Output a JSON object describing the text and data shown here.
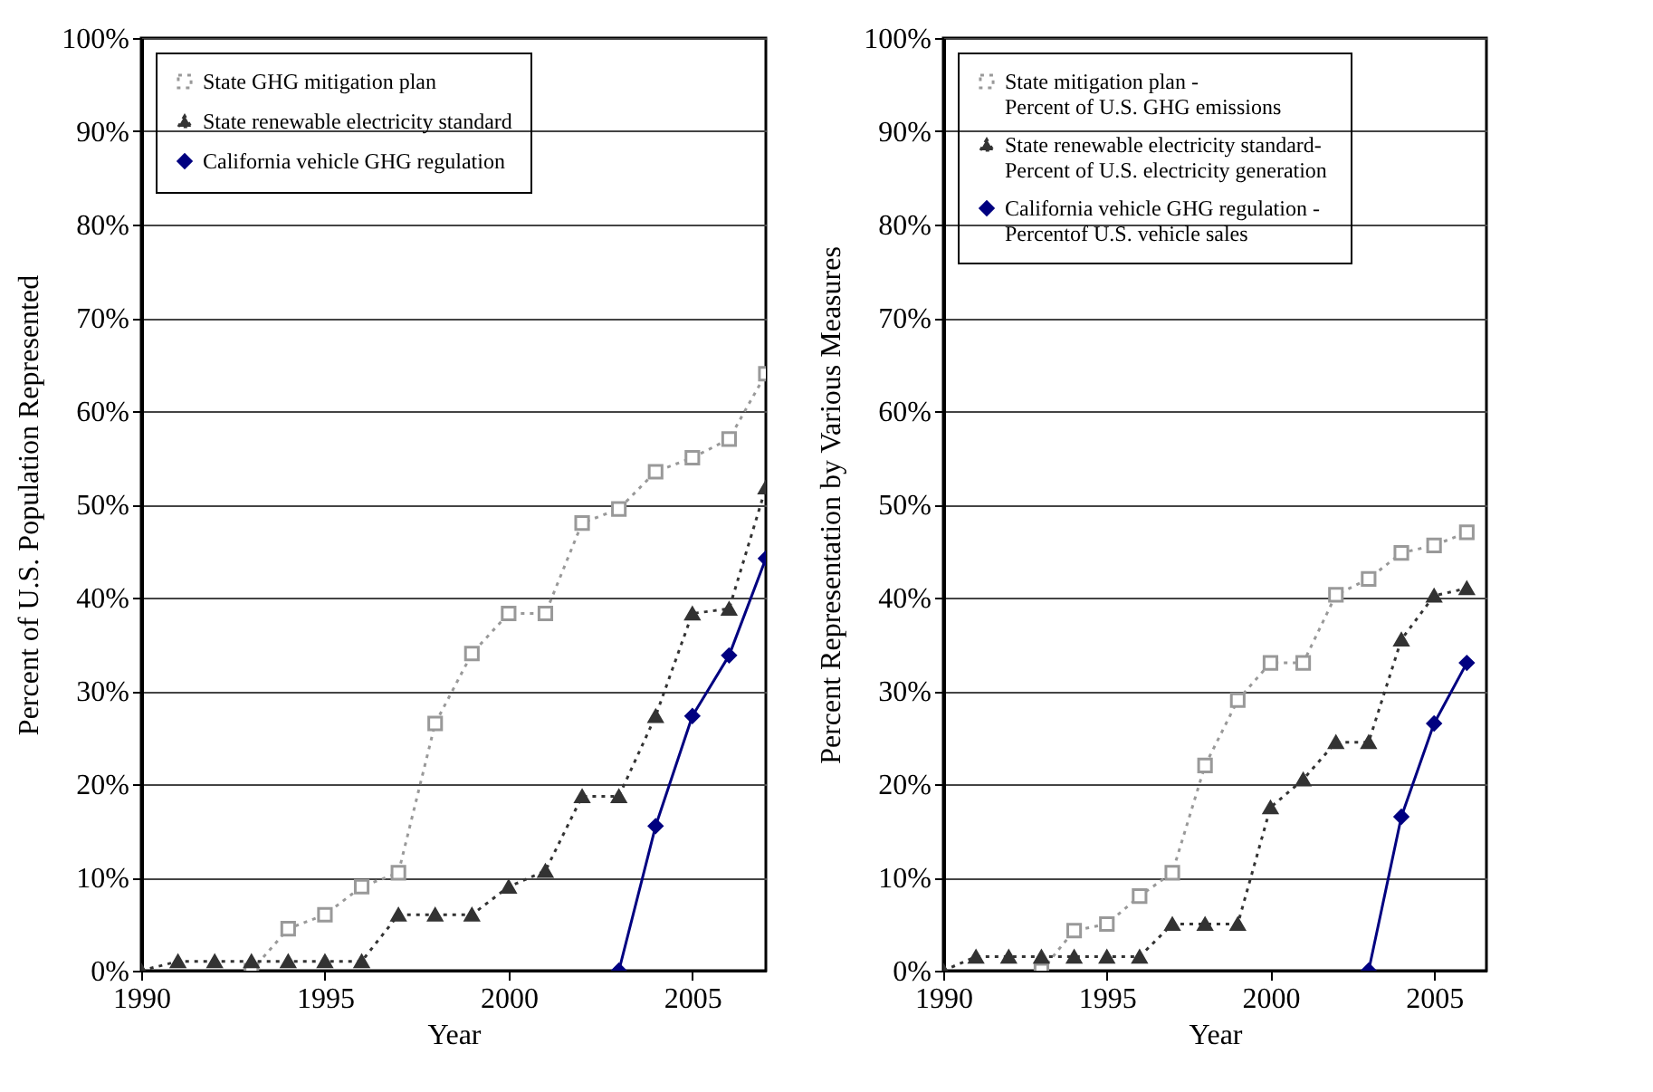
{
  "chart_data": [
    {
      "type": "line",
      "xlabel": "Year",
      "ylabel": "Percent of U.S. Population Represented",
      "xlim": [
        1990,
        2007
      ],
      "xticks": [
        1990,
        1995,
        2000,
        2005
      ],
      "ylim": [
        0,
        100
      ],
      "yticks": [
        {
          "value": 0,
          "label": "0%"
        },
        {
          "value": 10,
          "label": "10%"
        },
        {
          "value": 20,
          "label": "20%"
        },
        {
          "value": 30,
          "label": "30%"
        },
        {
          "value": 40,
          "label": "40%"
        },
        {
          "value": 50,
          "label": "50%"
        },
        {
          "value": 60,
          "label": "60%"
        },
        {
          "value": 70,
          "label": "70%"
        },
        {
          "value": 80,
          "label": "80%"
        },
        {
          "value": 90,
          "label": "90%"
        },
        {
          "value": 100,
          "label": "100%"
        }
      ],
      "grid": "y",
      "legend": "top left",
      "series": [
        {
          "name": "State GHG mitigation plan",
          "color": "#999999",
          "marker": "square",
          "line_style": "dotted",
          "x": [
            1993,
            1994,
            1995,
            1996,
            1997,
            1998,
            1999,
            2000,
            2001,
            2002,
            2003,
            2004,
            2005,
            2006,
            2007
          ],
          "values": [
            0,
            4.5,
            6,
            9,
            10.5,
            26.5,
            34,
            38.3,
            38.3,
            48,
            49.5,
            53.5,
            55,
            57,
            64
          ]
        },
        {
          "name": "State renewable electricity standard",
          "color": "#333333",
          "marker": "triangle",
          "line_style": "dotted",
          "x": [
            1990,
            1991,
            1992,
            1993,
            1994,
            1995,
            1996,
            1997,
            1998,
            1999,
            2000,
            2001,
            2002,
            2003,
            2004,
            2005,
            2006,
            2007
          ],
          "values": [
            0,
            1,
            1,
            1,
            1,
            1,
            1,
            6,
            6,
            6,
            9,
            10.7,
            18.7,
            18.7,
            27.3,
            38.3,
            38.8,
            51.8
          ]
        },
        {
          "name": "California vehicle GHG regulation",
          "color": "#000080",
          "marker": "diamond",
          "line_style": "solid",
          "x": [
            2003,
            2004,
            2005,
            2006,
            2007
          ],
          "values": [
            0,
            15.5,
            27.3,
            33.8,
            44.2
          ]
        }
      ]
    },
    {
      "type": "line",
      "xlabel": "Year",
      "ylabel": "Percent Representation by Various Measures",
      "xlim": [
        1990,
        2006.6
      ],
      "xticks": [
        1990,
        1995,
        2000,
        2005
      ],
      "ylim": [
        0,
        100
      ],
      "yticks": [
        {
          "value": 0,
          "label": "0%"
        },
        {
          "value": 10,
          "label": "10%"
        },
        {
          "value": 20,
          "label": "20%"
        },
        {
          "value": 30,
          "label": "30%"
        },
        {
          "value": 40,
          "label": "40%"
        },
        {
          "value": 50,
          "label": "50%"
        },
        {
          "value": 60,
          "label": "60%"
        },
        {
          "value": 70,
          "label": "70%"
        },
        {
          "value": 80,
          "label": "80%"
        },
        {
          "value": 90,
          "label": "90%"
        },
        {
          "value": 100,
          "label": "100%"
        }
      ],
      "grid": "y",
      "legend": "top left",
      "series": [
        {
          "name": "State mitigation plan -\nPercent of U.S. GHG emissions",
          "color": "#999999",
          "marker": "square",
          "line_style": "dotted",
          "x": [
            1993,
            1994,
            1995,
            1996,
            1997,
            1998,
            1999,
            2000,
            2001,
            2002,
            2003,
            2004,
            2005,
            2006
          ],
          "values": [
            0,
            4.3,
            5,
            8,
            10.5,
            22,
            29,
            33,
            33,
            40.3,
            42,
            44.8,
            45.6,
            47
          ]
        },
        {
          "name": "State renewable electricity standard-\nPercent  of U.S. electricity generation",
          "color": "#333333",
          "marker": "triangle",
          "line_style": "dotted",
          "x": [
            1990,
            1991,
            1992,
            1993,
            1994,
            1995,
            1996,
            1997,
            1998,
            1999,
            2000,
            2001,
            2002,
            2003,
            2004,
            2005,
            2006
          ],
          "values": [
            0,
            1.5,
            1.5,
            1.5,
            1.5,
            1.5,
            1.5,
            5,
            5,
            5,
            17.5,
            20.5,
            24.5,
            24.5,
            35.5,
            40.2,
            41
          ]
        },
        {
          "name": "California vehicle GHG regulation -\nPercentof U.S. vehicle sales",
          "color": "#000080",
          "marker": "diamond",
          "line_style": "solid",
          "x": [
            2003,
            2004,
            2005,
            2006
          ],
          "values": [
            0,
            16.5,
            26.5,
            33
          ]
        }
      ]
    }
  ]
}
